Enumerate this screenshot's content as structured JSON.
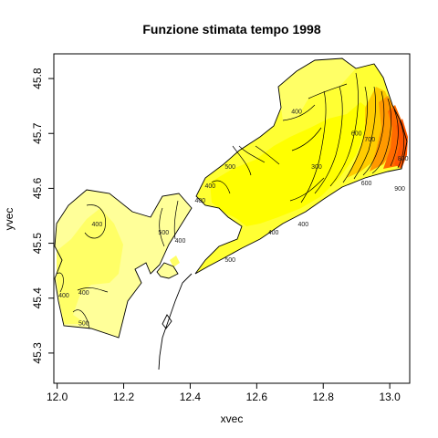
{
  "chart_data": {
    "type": "contour-map",
    "title": "Funzione stimata tempo 1998",
    "xlabel": "xvec",
    "ylabel": "yvec",
    "xlim": [
      11.99,
      13.06
    ],
    "ylim": [
      45.245,
      45.845
    ],
    "x_ticks": [
      12.0,
      12.2,
      12.4,
      12.6,
      12.8,
      13.0
    ],
    "x_tick_labels": [
      "12.0",
      "12.2",
      "12.4",
      "12.6",
      "12.8",
      "13.0"
    ],
    "y_ticks": [
      45.3,
      45.4,
      45.5,
      45.6,
      45.7,
      45.8
    ],
    "y_tick_labels": [
      "45.3",
      "45.4",
      "45.5",
      "45.6",
      "45.7",
      "45.8"
    ],
    "grid": false,
    "legend": "none",
    "colors": {
      "light_yellow": "#ffff99",
      "mid_yellow": "#ffff66",
      "yellow": "#ffff33",
      "bright_yellow": "#ffff00",
      "yellow_orange": "#ffcc00",
      "orange": "#ff9900",
      "dark_orange": "#ff6a00",
      "red_orange": "#ff5500",
      "line": "#000000"
    },
    "contour_levels": [
      300,
      400,
      500,
      600,
      700,
      800,
      900
    ],
    "contour_labels": [
      {
        "text": "400",
        "x": 12.12,
        "y": 45.535
      },
      {
        "text": "400",
        "x": 12.02,
        "y": 45.405
      },
      {
        "text": "400",
        "x": 12.08,
        "y": 45.41
      },
      {
        "text": "500",
        "x": 12.08,
        "y": 45.355
      },
      {
        "text": "500",
        "x": 12.32,
        "y": 45.52
      },
      {
        "text": "400",
        "x": 12.37,
        "y": 45.505
      },
      {
        "text": "400",
        "x": 12.46,
        "y": 45.605
      },
      {
        "text": "400",
        "x": 12.43,
        "y": 45.578
      },
      {
        "text": "500",
        "x": 12.52,
        "y": 45.64
      },
      {
        "text": "300",
        "x": 12.78,
        "y": 45.64
      },
      {
        "text": "400",
        "x": 12.72,
        "y": 45.74
      },
      {
        "text": "400",
        "x": 12.74,
        "y": 45.535
      },
      {
        "text": "400",
        "x": 12.65,
        "y": 45.52
      },
      {
        "text": "500",
        "x": 12.52,
        "y": 45.47
      },
      {
        "text": "600",
        "x": 12.9,
        "y": 45.7
      },
      {
        "text": "700",
        "x": 12.94,
        "y": 45.69
      },
      {
        "text": "600",
        "x": 12.93,
        "y": 45.61
      },
      {
        "text": "800",
        "x": 13.04,
        "y": 45.655
      },
      {
        "text": "900",
        "x": 13.03,
        "y": 45.6
      }
    ]
  }
}
